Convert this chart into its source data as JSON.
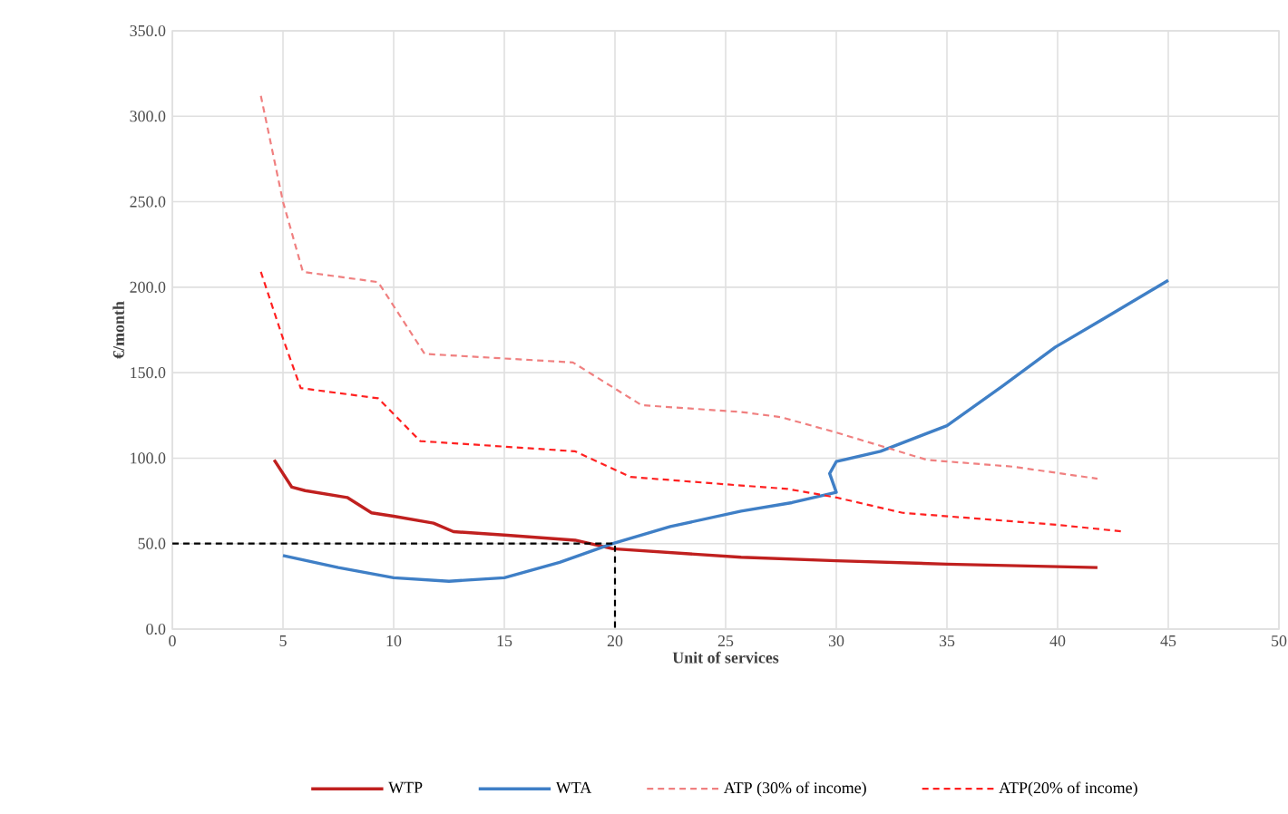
{
  "chart_data": {
    "type": "line",
    "xlabel": "Unit of services",
    "ylabel": "€/month",
    "xlim": [
      0,
      50
    ],
    "xticks": [
      0,
      5,
      10,
      15,
      20,
      25,
      30,
      35,
      40,
      45,
      50
    ],
    "ylim": [
      0,
      350
    ],
    "yticks": [
      {
        "value": 0,
        "label": "0.0"
      },
      {
        "value": 50,
        "label": "50.0"
      },
      {
        "value": 100,
        "label": "100.0"
      },
      {
        "value": 150,
        "label": "150.0"
      },
      {
        "value": 200,
        "label": "200.0"
      },
      {
        "value": 250,
        "label": "250.0"
      },
      {
        "value": 300,
        "label": "300.0"
      },
      {
        "value": 350,
        "label": "350.0"
      }
    ],
    "grid": true,
    "legend": "bottom",
    "series": [
      {
        "name": "WTP",
        "color": "#c0201f",
        "line_style": "solid",
        "x": [
          4.6,
          5.4,
          6,
          7.9,
          9,
          10,
          11.8,
          12.7,
          15,
          18.2,
          19.9,
          25.7,
          30,
          35,
          41.8
        ],
        "values": [
          99,
          83,
          81,
          77,
          68,
          66,
          62,
          57,
          55,
          52,
          47,
          42,
          40,
          38,
          36
        ]
      },
      {
        "name": "WTA",
        "color": "#3f7fc6",
        "line_style": "solid",
        "x": [
          5,
          7.5,
          10,
          12.5,
          15,
          17.5,
          19.9,
          22.5,
          25.7,
          28,
          30,
          29.7,
          30,
          32,
          35,
          37.5,
          39.9,
          42,
          45
        ],
        "values": [
          43,
          36,
          30,
          28,
          30,
          39,
          50,
          60,
          69,
          74,
          80,
          91,
          98,
          104,
          119,
          142,
          165,
          181,
          204
        ]
      },
      {
        "name": "ATP (30% of income)",
        "color": "#f08080",
        "line_style": "dashed",
        "x": [
          4,
          5,
          5.9,
          9.3,
          11.4,
          18.1,
          21.2,
          25.7,
          27.5,
          30,
          34.1,
          38,
          41.8
        ],
        "values": [
          312,
          250,
          209,
          203,
          161,
          156,
          131,
          127,
          124,
          115,
          99,
          95,
          88
        ]
      },
      {
        "name": "ATP(20% of income)",
        "color": "#ff2020",
        "line_style": "dashed",
        "x": [
          4,
          5,
          5.8,
          9.3,
          11.2,
          18.2,
          20.7,
          25.7,
          27.8,
          30,
          33,
          36,
          40,
          43
        ],
        "values": [
          209,
          170,
          141,
          135,
          110,
          104,
          89,
          84,
          82,
          77,
          68,
          65,
          61,
          57
        ]
      },
      {
        "color": "#000000",
        "line_style": "dashed",
        "x": [
          0,
          20,
          20
        ],
        "values": [
          50,
          50,
          0
        ]
      }
    ]
  }
}
